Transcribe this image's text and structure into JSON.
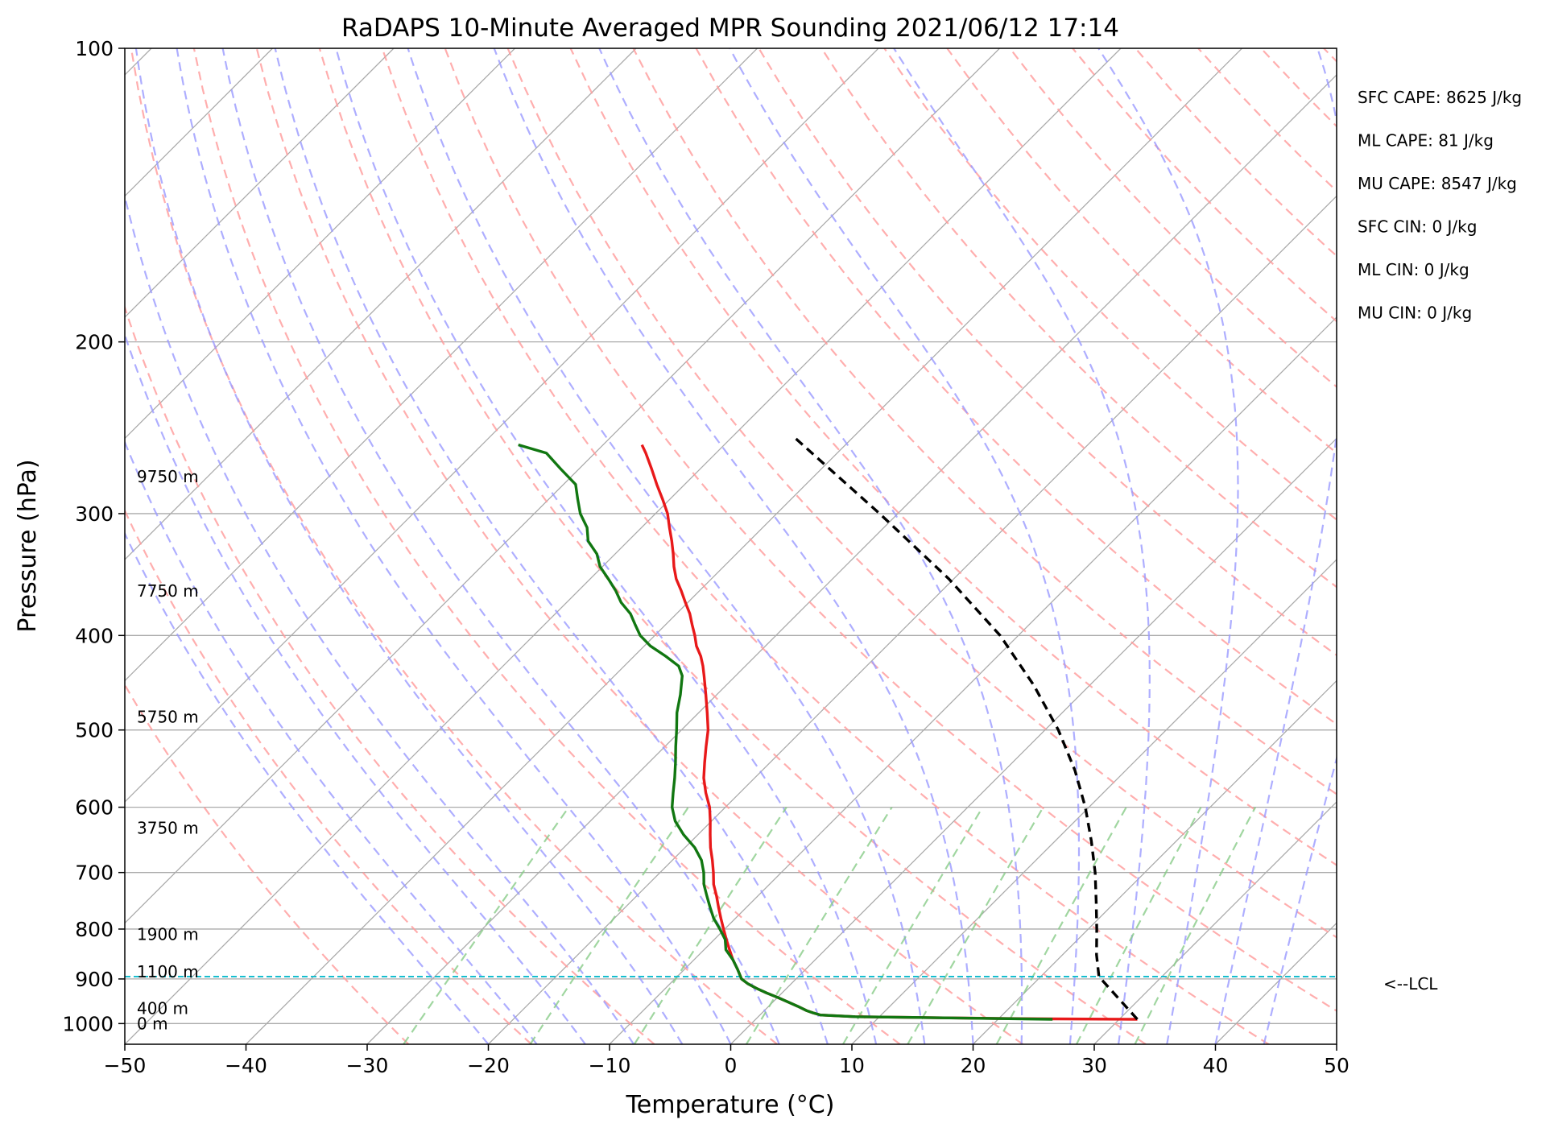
{
  "chart_data": {
    "type": "line",
    "title": "RaDAPS 10-Minute Averaged MPR Sounding 2021/06/12 17:14",
    "xlabel": "Temperature (°C)",
    "ylabel": "Pressure (hPa)",
    "xlim": [
      -50,
      50
    ],
    "ylim": [
      1050,
      100
    ],
    "y_scale": "log",
    "grid": true,
    "x_ticks": [
      -50,
      -40,
      -30,
      -20,
      -10,
      0,
      10,
      20,
      30,
      40,
      50
    ],
    "y_ticks": [
      100,
      200,
      300,
      400,
      500,
      600,
      700,
      800,
      900,
      1000
    ],
    "x_tick_labels": [
      "−50",
      "−40",
      "−30",
      "−20",
      "−10",
      "0",
      "10",
      "20",
      "30",
      "40",
      "50"
    ],
    "y_tick_labels": [
      "100",
      "200",
      "300",
      "400",
      "500",
      "600",
      "700",
      "800",
      "900",
      "1000"
    ],
    "skew": 45,
    "series": [
      {
        "role": "temperature",
        "color": "#e8191a",
        "pressure": [
          990,
          989,
          988,
          986,
          984,
          980,
          975,
          970,
          960,
          950,
          940,
          930,
          920,
          910,
          900,
          880,
          860,
          840,
          820,
          800,
          780,
          760,
          740,
          720,
          700,
          680,
          660,
          640,
          620,
          600,
          580,
          560,
          540,
          520,
          500,
          480,
          460,
          440,
          430,
          420,
          410,
          400,
          390,
          380,
          370,
          360,
          350,
          340,
          330,
          320,
          310,
          300,
          290,
          280,
          270,
          260,
          255
        ],
        "temperature": [
          31.5,
          24.5,
          20.0,
          14.0,
          8.0,
          5.0,
          4.2,
          3.5,
          2.4,
          1.2,
          0.0,
          -1.3,
          -2.5,
          -3.6,
          -4.5,
          -5.6,
          -6.8,
          -7.9,
          -9.0,
          -10.1,
          -11.2,
          -12.3,
          -13.4,
          -14.6,
          -15.6,
          -16.7,
          -17.9,
          -19.0,
          -20.1,
          -21.3,
          -22.8,
          -24.2,
          -25.4,
          -26.6,
          -27.8,
          -29.3,
          -30.9,
          -32.6,
          -33.5,
          -34.5,
          -35.7,
          -36.7,
          -37.8,
          -38.9,
          -40.2,
          -41.5,
          -42.9,
          -44.1,
          -45.2,
          -46.4,
          -47.7,
          -49.0,
          -50.6,
          -52.3,
          -54.0,
          -55.8,
          -56.8
        ]
      },
      {
        "role": "dewpoint",
        "color": "#117711",
        "pressure": [
          990,
          986,
          984,
          980,
          975,
          970,
          960,
          950,
          940,
          930,
          920,
          910,
          900,
          880,
          860,
          840,
          820,
          800,
          780,
          760,
          740,
          720,
          700,
          680,
          660,
          640,
          620,
          600,
          580,
          560,
          540,
          520,
          500,
          480,
          460,
          440,
          430,
          420,
          410,
          400,
          390,
          380,
          370,
          360,
          350,
          340,
          330,
          320,
          310,
          300,
          290,
          280,
          270,
          260,
          255
        ],
        "temperature": [
          24.5,
          14.0,
          8.0,
          5.0,
          4.2,
          3.5,
          2.4,
          1.2,
          0.0,
          -1.3,
          -2.5,
          -3.6,
          -4.5,
          -5.6,
          -6.8,
          -8.2,
          -9.1,
          -10.4,
          -11.8,
          -13.0,
          -14.2,
          -15.4,
          -16.4,
          -17.6,
          -19.2,
          -21.2,
          -23.0,
          -24.4,
          -25.5,
          -26.6,
          -27.8,
          -29.1,
          -30.4,
          -31.8,
          -33.0,
          -34.4,
          -35.5,
          -37.4,
          -39.5,
          -41.2,
          -42.5,
          -43.8,
          -45.5,
          -46.9,
          -48.5,
          -50.2,
          -51.5,
          -53.3,
          -54.5,
          -56.2,
          -57.6,
          -59.0,
          -61.5,
          -64.0,
          -67.0
        ]
      },
      {
        "role": "parcel",
        "color": "#000000",
        "pressure": [
          990,
          895,
          850,
          800,
          750,
          700,
          650,
          600,
          550,
          500,
          450,
          400,
          350,
          300,
          250
        ],
        "temperature": [
          31.5,
          24.8,
          22.8,
          20.7,
          18.4,
          15.9,
          13.0,
          9.7,
          5.8,
          1.1,
          -4.6,
          -11.5,
          -20.4,
          -31.5,
          -45.0
        ]
      }
    ],
    "lcl_pressure": 895,
    "lcl_label": "<--LCL",
    "height_labels": [
      {
        "text": "9750 m",
        "pressure": 275
      },
      {
        "text": "7750 m",
        "pressure": 360
      },
      {
        "text": "5750 m",
        "pressure": 485
      },
      {
        "text": "3750 m",
        "pressure": 630
      },
      {
        "text": "1900 m",
        "pressure": 810
      },
      {
        "text": "1100 m",
        "pressure": 885
      },
      {
        "text": "400 m",
        "pressure": 965
      },
      {
        "text": "0 m",
        "pressure": 1000
      }
    ],
    "indices": [
      "SFC CAPE: 8625 J/kg",
      "ML CAPE: 81 J/kg",
      "MU CAPE: 8547 J/kg",
      "SFC CIN: 0 J/kg",
      "ML CIN: 0 J/kg",
      "MU CIN: 0 J/kg"
    ],
    "colors": {
      "isotherm": "#aaaaaa",
      "dry_adiabat": "#ff9a9a",
      "moist_adiabat": "#9a9aff",
      "mixing_ratio": "#88cc88",
      "lcl_line": "#17becf"
    }
  }
}
